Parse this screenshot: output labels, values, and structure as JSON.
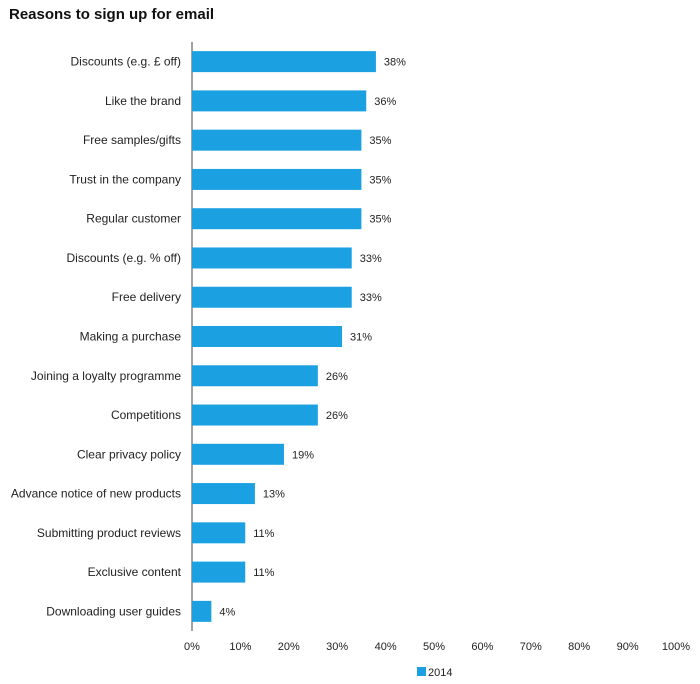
{
  "chart_data": {
    "type": "bar",
    "orientation": "horizontal",
    "title": "Reasons to sign up for email",
    "categories": [
      "Discounts (e.g. £ off)",
      "Like the brand",
      "Free samples/gifts",
      "Trust in the company",
      "Regular customer",
      "Discounts (e.g. % off)",
      "Free delivery",
      "Making a purchase",
      "Joining a loyalty programme",
      "Competitions",
      "Clear privacy policy",
      "Advance notice of new products",
      "Submitting product reviews",
      "Exclusive content",
      "Downloading user guides"
    ],
    "series": [
      {
        "name": "2014",
        "values": [
          38,
          36,
          35,
          35,
          35,
          33,
          33,
          31,
          26,
          26,
          19,
          13,
          11,
          11,
          4
        ],
        "value_labels": [
          "38%",
          "36%",
          "35%",
          "35%",
          "35%",
          "33%",
          "33%",
          "31%",
          "26%",
          "26%",
          "19%",
          "13%",
          "11%",
          "11%",
          "4%"
        ],
        "color": "#1ba1e2"
      }
    ],
    "xlim": [
      0,
      100
    ],
    "x_ticks": [
      0,
      10,
      20,
      30,
      40,
      50,
      60,
      70,
      80,
      90,
      100
    ],
    "x_tick_labels": [
      "0%",
      "10%",
      "20%",
      "30%",
      "40%",
      "50%",
      "60%",
      "70%",
      "80%",
      "90%",
      "100%"
    ],
    "grid": false,
    "legend_position": "bottom"
  }
}
